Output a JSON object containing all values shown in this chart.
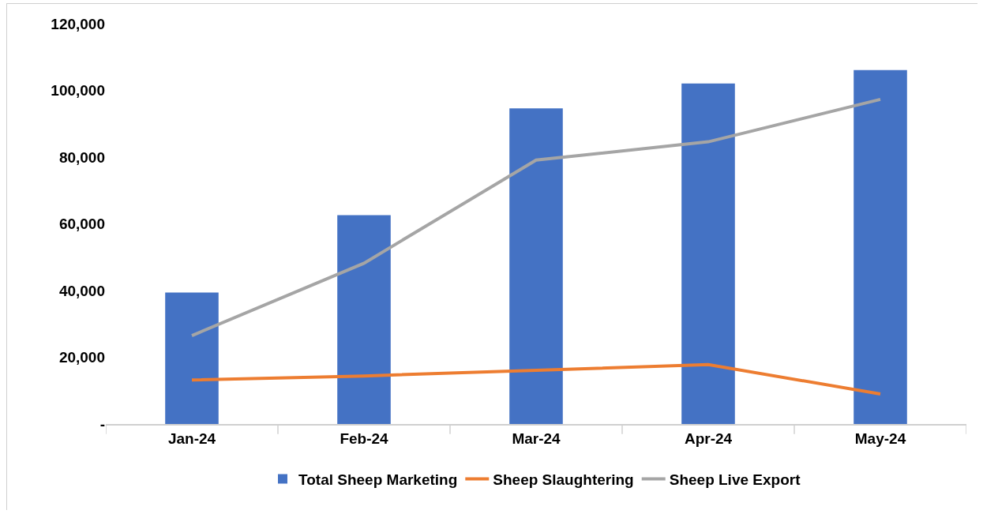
{
  "chart_data": {
    "type": "bar",
    "categories": [
      "Jan-24",
      "Feb-24",
      "Mar-24",
      "Apr-24",
      "May-24"
    ],
    "series": [
      {
        "name": "Total Sheep Marketing",
        "color": "#4472c4",
        "values": [
          39400,
          62600,
          94600,
          102100,
          106100
        ]
      },
      {
        "name": "Sheep Slaughtering",
        "type": "line",
        "color": "#ed7d31",
        "values": [
          13200,
          14400,
          16100,
          17800,
          9000
        ]
      },
      {
        "name": "Sheep Live Export",
        "type": "line",
        "color": "#a5a5a5",
        "values": [
          26500,
          48200,
          79100,
          84600,
          97300
        ]
      }
    ],
    "ylim": [
      0,
      120000
    ],
    "yticks": [
      {
        "value": 0,
        "label": "-"
      },
      {
        "value": 20000,
        "label": "20,000"
      },
      {
        "value": 40000,
        "label": "40,000"
      },
      {
        "value": 60000,
        "label": "60,000"
      },
      {
        "value": 80000,
        "label": "80,000"
      },
      {
        "value": 100000,
        "label": "100,000"
      },
      {
        "value": 120000,
        "label": "120,000"
      }
    ],
    "grid": false,
    "legend": "bottom",
    "marker": "none",
    "line_style": "solid"
  }
}
